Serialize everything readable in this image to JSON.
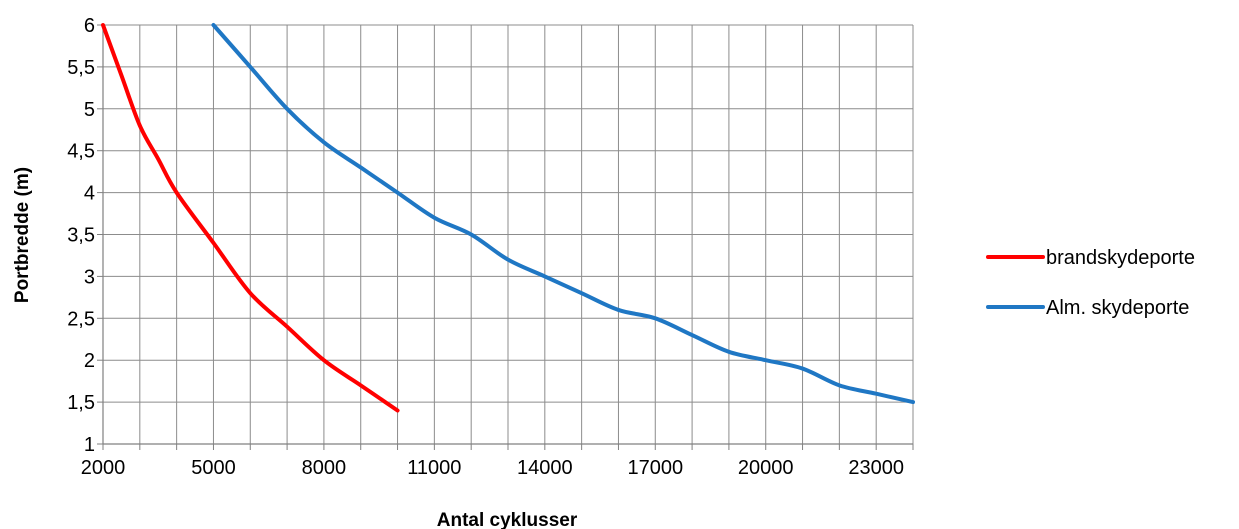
{
  "chart_data": {
    "type": "line",
    "title": "",
    "xlabel": "Antal cyklusser",
    "ylabel": "Portbredde (m)",
    "xlim": [
      2000,
      24000
    ],
    "ylim": [
      1,
      6
    ],
    "x_ticks": [
      2000,
      5000,
      8000,
      11000,
      14000,
      17000,
      20000,
      23000
    ],
    "x_tick_labels": [
      "2000",
      "5000",
      "8000",
      "11000",
      "14000",
      "17000",
      "20000",
      "23000"
    ],
    "y_ticks": [
      1,
      1.5,
      2,
      2.5,
      3,
      3.5,
      4,
      4.5,
      5,
      5.5,
      6
    ],
    "y_tick_labels": [
      "1",
      "1,5",
      "2",
      "2,5",
      "3",
      "3,5",
      "4",
      "4,5",
      "5",
      "5,5",
      "6"
    ],
    "x_gridlines": [
      2000,
      3000,
      4000,
      5000,
      6000,
      7000,
      8000,
      9000,
      10000,
      11000,
      12000,
      13000,
      14000,
      15000,
      16000,
      17000,
      18000,
      19000,
      20000,
      21000,
      22000,
      23000,
      24000
    ],
    "grid": true,
    "legend_position": "right",
    "series": [
      {
        "name": "brandskydeporte",
        "color": "#ff0000",
        "points": [
          [
            2000,
            6
          ],
          [
            2500,
            5.4
          ],
          [
            3000,
            4.8
          ],
          [
            3500,
            4.4
          ],
          [
            4000,
            4.0
          ],
          [
            5000,
            3.4
          ],
          [
            6000,
            2.8
          ],
          [
            7000,
            2.4
          ],
          [
            8000,
            2.0
          ],
          [
            9000,
            1.7
          ],
          [
            10000,
            1.4
          ]
        ]
      },
      {
        "name": "Alm. skydeporte",
        "color": "#1f77c4",
        "points": [
          [
            5000,
            6
          ],
          [
            6000,
            5.5
          ],
          [
            7000,
            5.0
          ],
          [
            8000,
            4.6
          ],
          [
            9000,
            4.3
          ],
          [
            10000,
            4.0
          ],
          [
            11000,
            3.7
          ],
          [
            12000,
            3.5
          ],
          [
            13000,
            3.2
          ],
          [
            14000,
            3.0
          ],
          [
            15000,
            2.8
          ],
          [
            16000,
            2.6
          ],
          [
            17000,
            2.5
          ],
          [
            18000,
            2.3
          ],
          [
            19000,
            2.1
          ],
          [
            20000,
            2.0
          ],
          [
            21000,
            1.9
          ],
          [
            22000,
            1.7
          ],
          [
            23000,
            1.6
          ],
          [
            24000,
            1.5
          ]
        ]
      }
    ]
  }
}
